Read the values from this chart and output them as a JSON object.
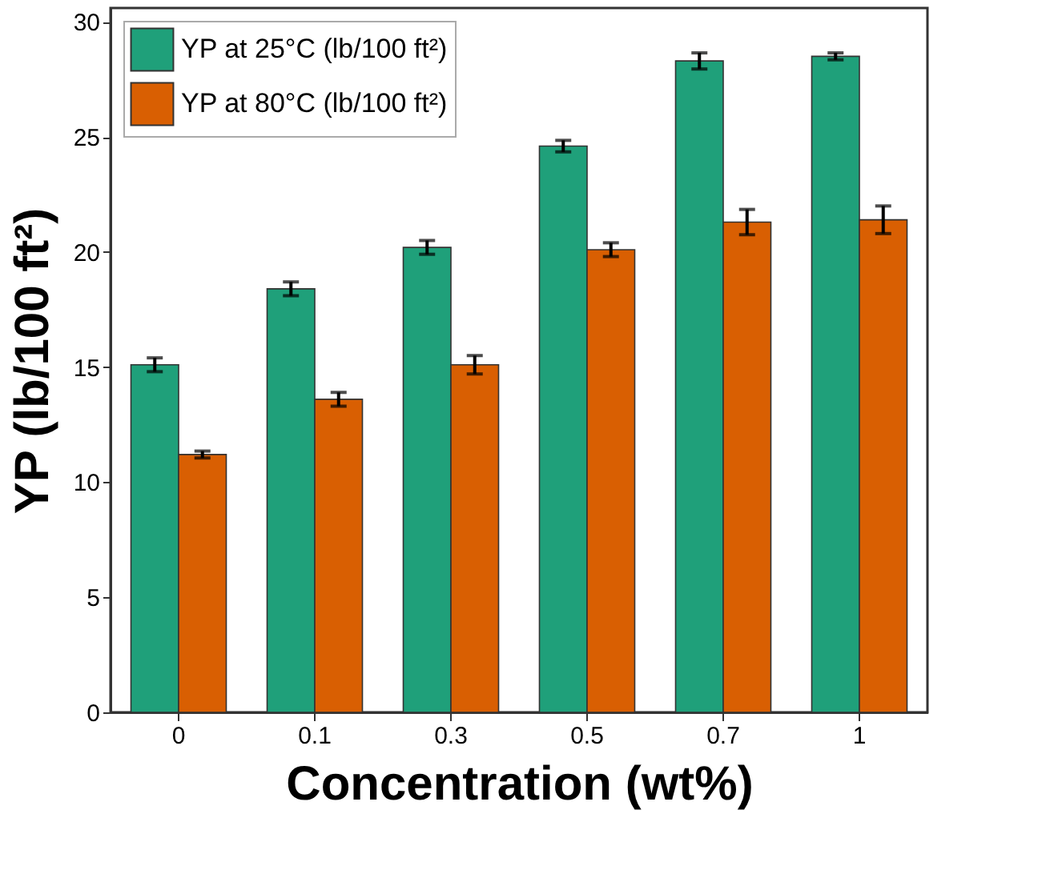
{
  "chart_data": {
    "type": "bar",
    "xlabel": "Concentration (wt%)",
    "ylabel": "YP (lb/100 ft²)",
    "categories": [
      "0",
      "0.1",
      "0.3",
      "0.5",
      "0.7",
      "1"
    ],
    "series": [
      {
        "name": "YP at 25°C (lb/100 ft²)",
        "color": "#1fa07a",
        "values": [
          15.1,
          18.4,
          20.2,
          24.6,
          28.3,
          28.5
        ],
        "errors": [
          0.3,
          0.3,
          0.3,
          0.25,
          0.35,
          0.15
        ]
      },
      {
        "name": "YP at 80°C (lb/100 ft²)",
        "color": "#d95f02",
        "values": [
          11.2,
          13.6,
          15.1,
          20.1,
          21.3,
          21.4
        ],
        "errors": [
          0.15,
          0.3,
          0.4,
          0.3,
          0.55,
          0.6
        ]
      }
    ],
    "ylim": [
      0,
      30.6
    ],
    "yticks": [
      0,
      5,
      10,
      15,
      20,
      25,
      30
    ],
    "grid": false,
    "legend": "top left"
  }
}
